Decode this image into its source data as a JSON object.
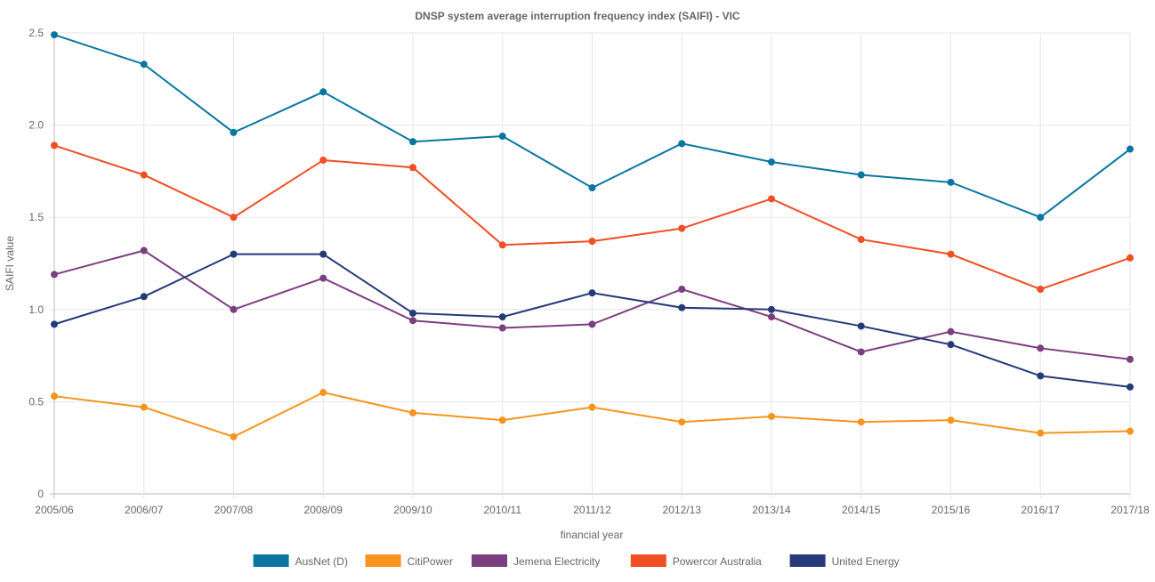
{
  "chart_data": {
    "type": "line",
    "title": "DNSP system average interruption frequency index (SAIFI) - VIC",
    "xlabel": "financial year",
    "ylabel": "SAIFI value",
    "ylim": [
      0,
      2.5
    ],
    "yticks": [
      "0",
      "0.5",
      "1.0",
      "1.5",
      "2.0",
      "2.5"
    ],
    "grid": true,
    "legend_position": "bottom",
    "categories": [
      "2005/06",
      "2006/07",
      "2007/08",
      "2008/09",
      "2009/10",
      "2010/11",
      "2011/12",
      "2012/13",
      "2013/14",
      "2014/15",
      "2015/16",
      "2016/17",
      "2017/18"
    ],
    "series": [
      {
        "name": "AusNet (D)",
        "color": "#0a76a0",
        "values": [
          2.49,
          2.33,
          1.96,
          2.18,
          1.91,
          1.94,
          1.66,
          1.9,
          1.8,
          1.73,
          1.69,
          1.5,
          1.87
        ]
      },
      {
        "name": "CitiPower",
        "color": "#f7941d",
        "values": [
          0.53,
          0.47,
          0.31,
          0.55,
          0.44,
          0.4,
          0.47,
          0.39,
          0.42,
          0.39,
          0.4,
          0.33,
          0.34
        ]
      },
      {
        "name": "Jemena Electricity",
        "color": "#7b3f80",
        "values": [
          1.19,
          1.32,
          1.0,
          1.17,
          0.94,
          0.9,
          0.92,
          1.11,
          0.96,
          0.77,
          0.88,
          0.79,
          0.73
        ]
      },
      {
        "name": "Powercor Australia",
        "color": "#f04e23",
        "values": [
          1.89,
          1.73,
          1.5,
          1.81,
          1.77,
          1.35,
          1.37,
          1.44,
          1.6,
          1.38,
          1.3,
          1.11,
          1.28
        ]
      },
      {
        "name": "United Energy",
        "color": "#253a78",
        "values": [
          0.92,
          1.07,
          1.3,
          1.3,
          0.98,
          0.96,
          1.09,
          1.01,
          1.0,
          0.91,
          0.81,
          0.64,
          0.58
        ]
      }
    ]
  }
}
